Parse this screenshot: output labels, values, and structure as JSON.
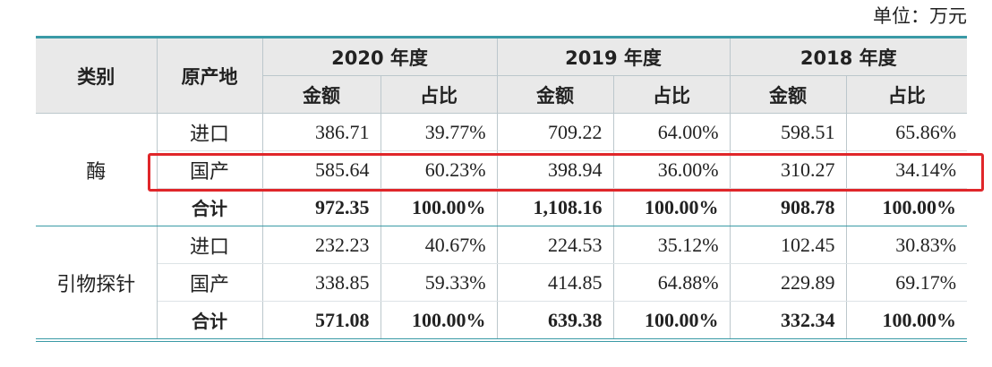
{
  "unit_note": "单位：万元",
  "table": {
    "headers": {
      "category": "类别",
      "origin": "原产地",
      "years": [
        "2020 年度",
        "2019 年度",
        "2018 年度"
      ],
      "subheaders": [
        "金额",
        "占比",
        "金额",
        "占比",
        "金额",
        "占比"
      ]
    },
    "groups": [
      {
        "name": "酶",
        "rows": [
          {
            "origin": "进口",
            "cells": [
              "386.71",
              "39.77%",
              "709.22",
              "64.00%",
              "598.51",
              "65.86%"
            ]
          },
          {
            "origin": "国产",
            "cells": [
              "585.64",
              "60.23%",
              "398.94",
              "36.00%",
              "310.27",
              "34.14%"
            ]
          },
          {
            "origin": "合计",
            "cells": [
              "972.35",
              "100.00%",
              "1,108.16",
              "100.00%",
              "908.78",
              "100.00%"
            ]
          }
        ]
      },
      {
        "name": "引物探针",
        "rows": [
          {
            "origin": "进口",
            "cells": [
              "232.23",
              "40.67%",
              "224.53",
              "35.12%",
              "102.45",
              "30.83%"
            ]
          },
          {
            "origin": "国产",
            "cells": [
              "338.85",
              "59.33%",
              "414.85",
              "64.88%",
              "229.89",
              "69.17%"
            ]
          },
          {
            "origin": "合计",
            "cells": [
              "571.08",
              "100.00%",
              "639.38",
              "100.00%",
              "332.34",
              "100.00%"
            ]
          }
        ]
      }
    ]
  }
}
